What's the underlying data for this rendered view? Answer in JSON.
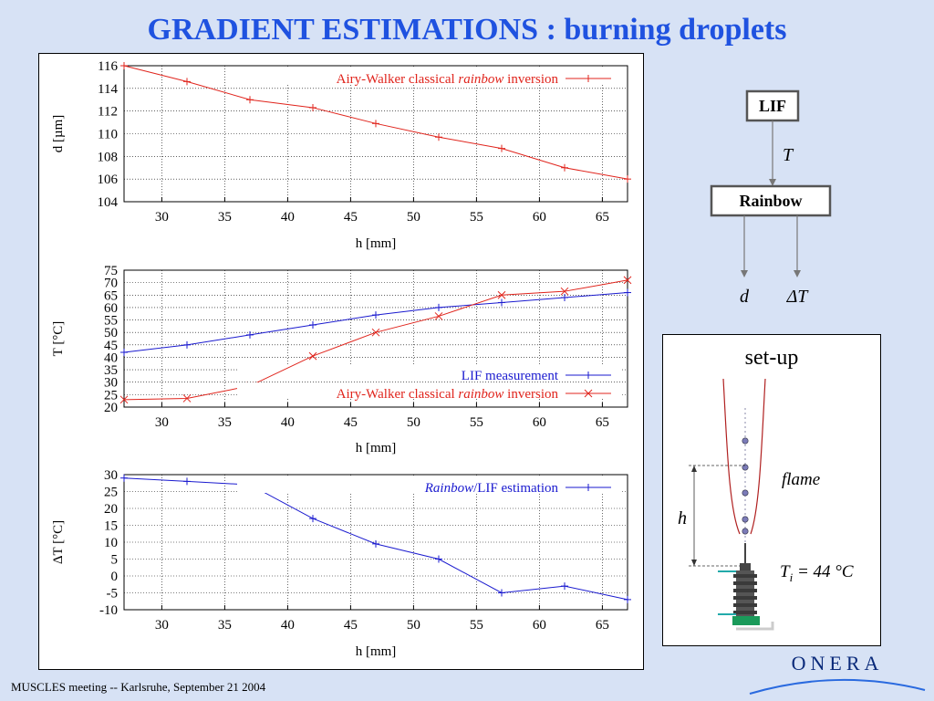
{
  "slide": {
    "title": "GRADIENT ESTIMATIONS : burning droplets",
    "footer": "MUSCLES meeting -- Karlsruhe, September 21 2004",
    "logo_text": "ONERA"
  },
  "flowchart": {
    "box1": "LIF",
    "edge_label": "T",
    "box2": "Rainbow",
    "out1": "d",
    "out2": "ΔT"
  },
  "setup": {
    "title": "set-up",
    "flame_label": "flame",
    "h_label": "h",
    "ti_base": "T",
    "ti_sub": "i",
    "ti_value": " = 44 °C"
  },
  "colors": {
    "red": "#e0241c",
    "blue": "#1a1acf",
    "title_blue": "#1f52e0"
  },
  "chart_data": [
    {
      "type": "line",
      "xlabel": "h [mm]",
      "ylabel": "d [µm]",
      "xlim": [
        27,
        67
      ],
      "ylim": [
        104,
        116
      ],
      "xticks": [
        30,
        35,
        40,
        45,
        50,
        55,
        60,
        65
      ],
      "yticks": [
        104,
        106,
        108,
        110,
        112,
        114,
        116
      ],
      "grid": true,
      "legend_position": "top-right",
      "series": [
        {
          "name_parts": [
            "Airy-Walker classical ",
            "rainbow",
            " inversion"
          ],
          "color": "#e0241c",
          "marker": "plus",
          "x": [
            27,
            32,
            37,
            42,
            47,
            52,
            57,
            62,
            67
          ],
          "y": [
            116.0,
            114.6,
            113.0,
            112.3,
            110.9,
            109.7,
            108.7,
            107.0,
            106.0
          ]
        }
      ]
    },
    {
      "type": "line",
      "xlabel": "h [mm]",
      "ylabel": "T [°C]",
      "xlim": [
        27,
        67
      ],
      "ylim": [
        20,
        75
      ],
      "xticks": [
        30,
        35,
        40,
        45,
        50,
        55,
        60,
        65
      ],
      "yticks": [
        20,
        25,
        30,
        35,
        40,
        45,
        50,
        55,
        60,
        65,
        70,
        75
      ],
      "grid": true,
      "legend_position": "bottom-right",
      "series": [
        {
          "name_parts": [
            "LIF measurement",
            "",
            ""
          ],
          "color": "#1a1acf",
          "marker": "plus",
          "x": [
            27,
            32,
            37,
            42,
            47,
            52,
            57,
            62,
            67
          ],
          "y": [
            42,
            45,
            49,
            53,
            57,
            60,
            62,
            64,
            66
          ]
        },
        {
          "name_parts": [
            "Airy-Walker classical ",
            "rainbow",
            " inversion"
          ],
          "color": "#e0241c",
          "marker": "cross",
          "x": [
            27,
            32,
            37,
            42,
            47,
            52,
            57,
            62,
            67
          ],
          "y": [
            23,
            23.5,
            28.5,
            40.5,
            50,
            56.5,
            65,
            66.5,
            71
          ]
        }
      ]
    },
    {
      "type": "line",
      "xlabel": "h [mm]",
      "ylabel": "ΔT [°C]",
      "xlim": [
        27,
        67
      ],
      "ylim": [
        -10,
        30
      ],
      "xticks": [
        30,
        35,
        40,
        45,
        50,
        55,
        60,
        65
      ],
      "yticks": [
        -10,
        -5,
        0,
        5,
        10,
        15,
        20,
        25,
        30
      ],
      "grid": true,
      "legend_position": "top-right",
      "series": [
        {
          "name_parts": [
            "",
            "Rainbow",
            "/LIF estimation"
          ],
          "color": "#1a1acf",
          "marker": "plus",
          "x": [
            27,
            32,
            37,
            42,
            47,
            52,
            57,
            62,
            67
          ],
          "y": [
            29,
            28,
            27,
            17,
            9.5,
            5,
            -5,
            -3,
            -7
          ]
        }
      ]
    }
  ]
}
